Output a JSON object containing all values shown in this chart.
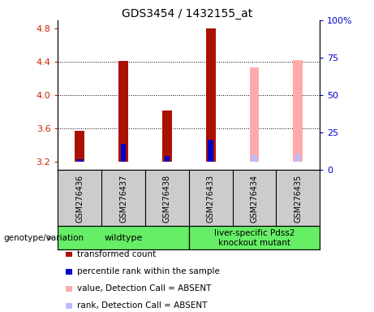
{
  "title": "GDS3454 / 1432155_at",
  "samples": [
    "GSM276436",
    "GSM276437",
    "GSM276438",
    "GSM276433",
    "GSM276434",
    "GSM276435"
  ],
  "ylim_left": [
    3.1,
    4.9
  ],
  "ylim_right": [
    0,
    100
  ],
  "yticks_left": [
    3.2,
    3.6,
    4.0,
    4.4,
    4.8
  ],
  "yticks_right": [
    0,
    25,
    50,
    75,
    100
  ],
  "bar_base": 3.2,
  "transformed_counts": [
    3.57,
    4.41,
    3.82,
    4.8,
    null,
    null
  ],
  "percentile_ranks": [
    3.225,
    3.42,
    3.27,
    3.46,
    null,
    null
  ],
  "absent_values": [
    null,
    null,
    null,
    null,
    4.33,
    4.42
  ],
  "absent_ranks": [
    null,
    null,
    null,
    null,
    3.275,
    3.3
  ],
  "bar_width": 0.22,
  "blue_bar_width": 0.12,
  "red_color": "#aa1100",
  "blue_color": "#0000cc",
  "absent_red": "#ffaaaa",
  "absent_blue": "#bbbbff",
  "grid_lines": [
    3.6,
    4.0,
    4.4
  ],
  "tick_color_left": "#cc2200",
  "tick_color_right": "#0000cc",
  "legend_labels": [
    "transformed count",
    "percentile rank within the sample",
    "value, Detection Call = ABSENT",
    "rank, Detection Call = ABSENT"
  ],
  "legend_colors": [
    "#aa1100",
    "#0000cc",
    "#ffaaaa",
    "#bbbbff"
  ],
  "group1_label": "wildtype",
  "group2_label": "liver-specific Pdss2\nknockout mutant",
  "group_color": "#66ee66",
  "sample_box_color": "#cccccc",
  "group_row_label": "genotype/variation"
}
